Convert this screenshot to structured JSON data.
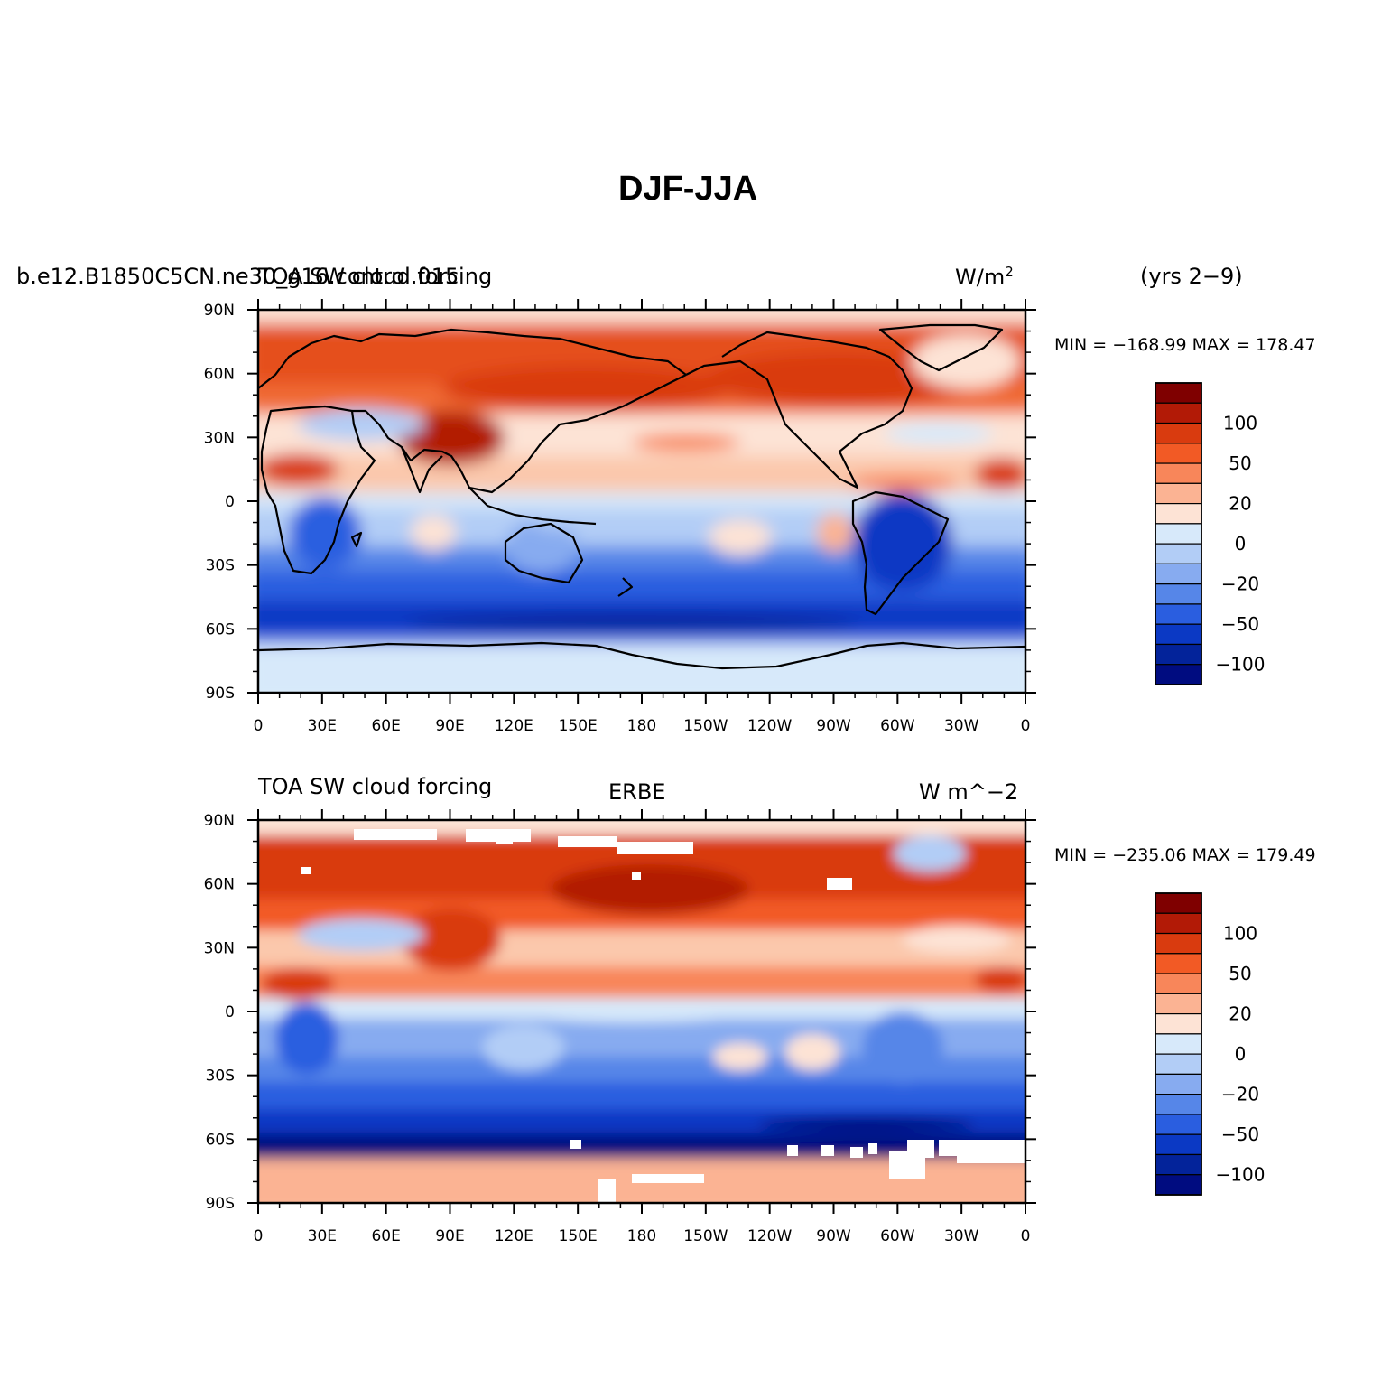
{
  "figure": {
    "title": "DJF-JJA",
    "years_label": "(yrs 2−9)"
  },
  "panels": [
    {
      "id": "model",
      "left_label": "b.e12.B1850C5CN.ne30_g16.control.015",
      "overlay_label": "TOA SW cloud forcing",
      "center_label": "",
      "units_label": "W/m",
      "units_sup": "2",
      "stats": "MIN = −168.99  MAX = 178.47",
      "min": -168.99,
      "max": 178.47
    },
    {
      "id": "obs",
      "left_label": "TOA SW cloud forcing",
      "overlay_label": "",
      "center_label": "ERBE",
      "units_label": "W m^−2",
      "units_sup": "",
      "stats": "MIN = −235.06  MAX = 179.49",
      "min": -235.06,
      "max": 179.49
    }
  ],
  "lat_ticks": [
    "90N",
    "60N",
    "30N",
    "0",
    "30S",
    "60S",
    "90S"
  ],
  "lon_ticks": [
    "0",
    "30E",
    "60E",
    "90E",
    "120E",
    "150E",
    "180",
    "150W",
    "120W",
    "90W",
    "60W",
    "30W",
    "0"
  ],
  "colorbar": {
    "labels": [
      "100",
      "50",
      "20",
      "0",
      "−20",
      "−50",
      "−100"
    ],
    "colors": [
      "#7f0000",
      "#b21a06",
      "#d93b0f",
      "#f25a25",
      "#f8865a",
      "#fbb393",
      "#fde3d5",
      "#d7e9fa",
      "#b2cdf6",
      "#87abf0",
      "#5686e8",
      "#2a5ee0",
      "#0b39c4",
      "#03239a",
      "#000c80"
    ]
  }
}
